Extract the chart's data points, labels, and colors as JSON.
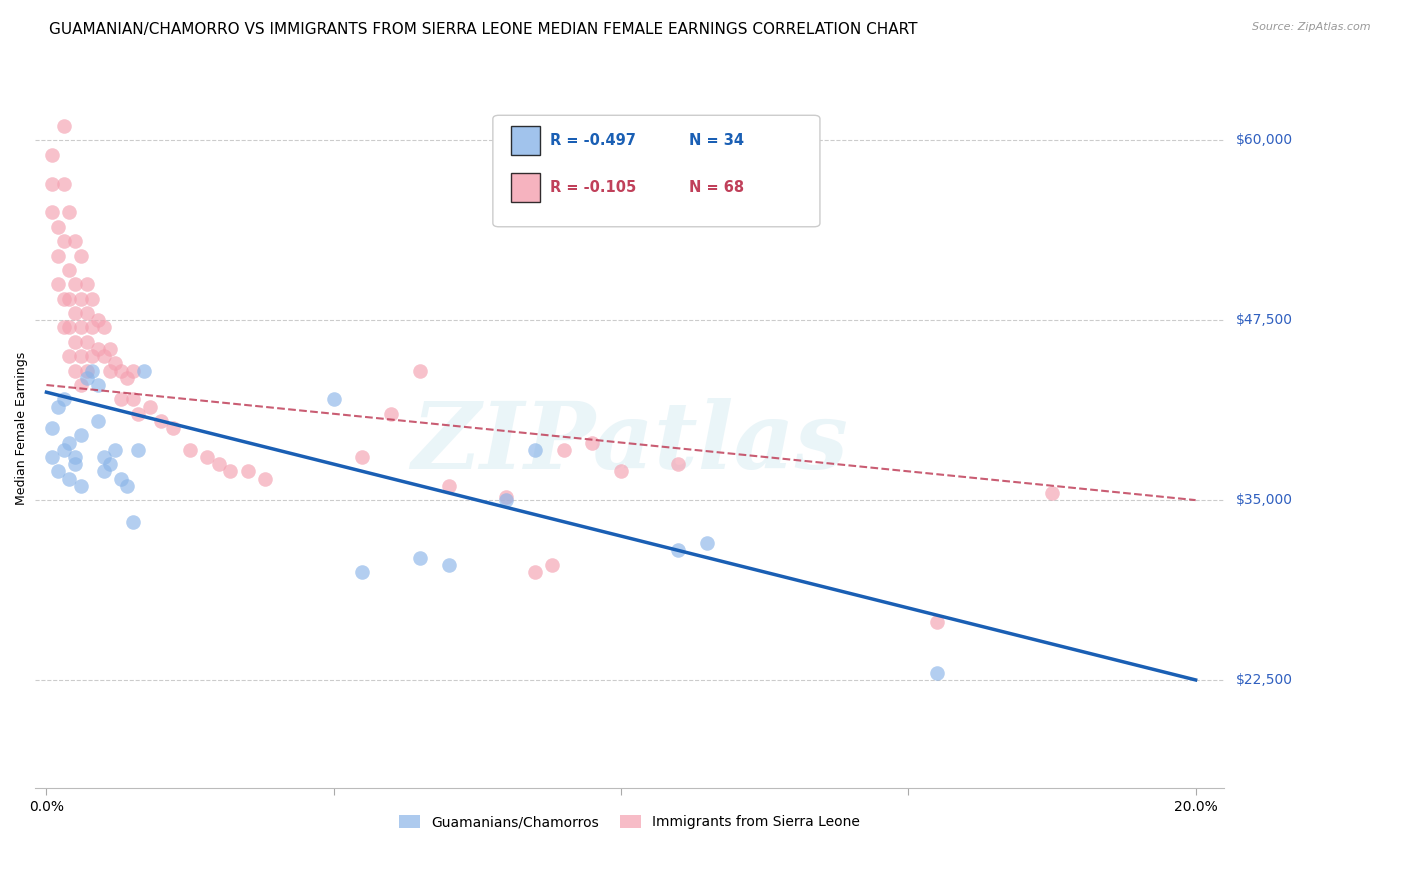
{
  "title": "GUAMANIAN/CHAMORRO VS IMMIGRANTS FROM SIERRA LEONE MEDIAN FEMALE EARNINGS CORRELATION CHART",
  "source": "Source: ZipAtlas.com",
  "ylabel": "Median Female Earnings",
  "yticks": [
    22500,
    35000,
    47500,
    60000
  ],
  "ytick_labels": [
    "$22,500",
    "$35,000",
    "$47,500",
    "$60,000"
  ],
  "ymin": 15000,
  "ymax": 65000,
  "xmin": -0.002,
  "xmax": 0.205,
  "legend_blue_r": "R = -0.497",
  "legend_blue_n": "N = 34",
  "legend_pink_r": "R = -0.105",
  "legend_pink_n": "N = 68",
  "legend_label_blue": "Guamanians/Chamorros",
  "legend_label_pink": "Immigrants from Sierra Leone",
  "watermark": "ZIPatlas",
  "blue_scatter_x": [
    0.001,
    0.001,
    0.002,
    0.002,
    0.003,
    0.003,
    0.004,
    0.004,
    0.005,
    0.005,
    0.006,
    0.006,
    0.007,
    0.008,
    0.009,
    0.009,
    0.01,
    0.01,
    0.011,
    0.012,
    0.013,
    0.014,
    0.015,
    0.016,
    0.017,
    0.05,
    0.055,
    0.065,
    0.07,
    0.08,
    0.085,
    0.11,
    0.115,
    0.155
  ],
  "blue_scatter_y": [
    38000,
    40000,
    37000,
    41500,
    38500,
    42000,
    39000,
    36500,
    38000,
    37500,
    36000,
    39500,
    43500,
    44000,
    43000,
    40500,
    37000,
    38000,
    37500,
    38500,
    36500,
    36000,
    33500,
    38500,
    44000,
    42000,
    30000,
    31000,
    30500,
    35000,
    38500,
    31500,
    32000,
    23000
  ],
  "pink_scatter_x": [
    0.001,
    0.001,
    0.001,
    0.002,
    0.002,
    0.002,
    0.003,
    0.003,
    0.003,
    0.003,
    0.003,
    0.004,
    0.004,
    0.004,
    0.004,
    0.004,
    0.005,
    0.005,
    0.005,
    0.005,
    0.005,
    0.006,
    0.006,
    0.006,
    0.006,
    0.006,
    0.007,
    0.007,
    0.007,
    0.007,
    0.008,
    0.008,
    0.008,
    0.009,
    0.009,
    0.01,
    0.01,
    0.011,
    0.011,
    0.012,
    0.013,
    0.013,
    0.014,
    0.015,
    0.015,
    0.016,
    0.018,
    0.02,
    0.022,
    0.025,
    0.028,
    0.03,
    0.032,
    0.035,
    0.038,
    0.055,
    0.06,
    0.065,
    0.07,
    0.08,
    0.085,
    0.088,
    0.09,
    0.095,
    0.1,
    0.11,
    0.155,
    0.175
  ],
  "pink_scatter_y": [
    59000,
    57000,
    55000,
    54000,
    52000,
    50000,
    61000,
    57000,
    53000,
    49000,
    47000,
    55000,
    51000,
    49000,
    47000,
    45000,
    53000,
    50000,
    48000,
    46000,
    44000,
    52000,
    49000,
    47000,
    45000,
    43000,
    50000,
    48000,
    46000,
    44000,
    49000,
    47000,
    45000,
    47500,
    45500,
    47000,
    45000,
    45500,
    44000,
    44500,
    44000,
    42000,
    43500,
    44000,
    42000,
    41000,
    41500,
    40500,
    40000,
    38500,
    38000,
    37500,
    37000,
    37000,
    36500,
    38000,
    41000,
    44000,
    36000,
    35200,
    30000,
    30500,
    38500,
    39000,
    37000,
    37500,
    26500,
    35500
  ],
  "blue_line_x": [
    0.0,
    0.2
  ],
  "blue_line_y": [
    42500,
    22500
  ],
  "pink_line_x": [
    0.0,
    0.2
  ],
  "pink_line_y": [
    43000,
    35000
  ],
  "grid_color": "#cccccc",
  "blue_color": "#8ab4e8",
  "pink_color": "#f4a0b0",
  "trend_blue": "#1a5fb4",
  "trend_pink": "#c0405a",
  "axis_color": "#3060c0",
  "title_fontsize": 11,
  "label_fontsize": 9
}
